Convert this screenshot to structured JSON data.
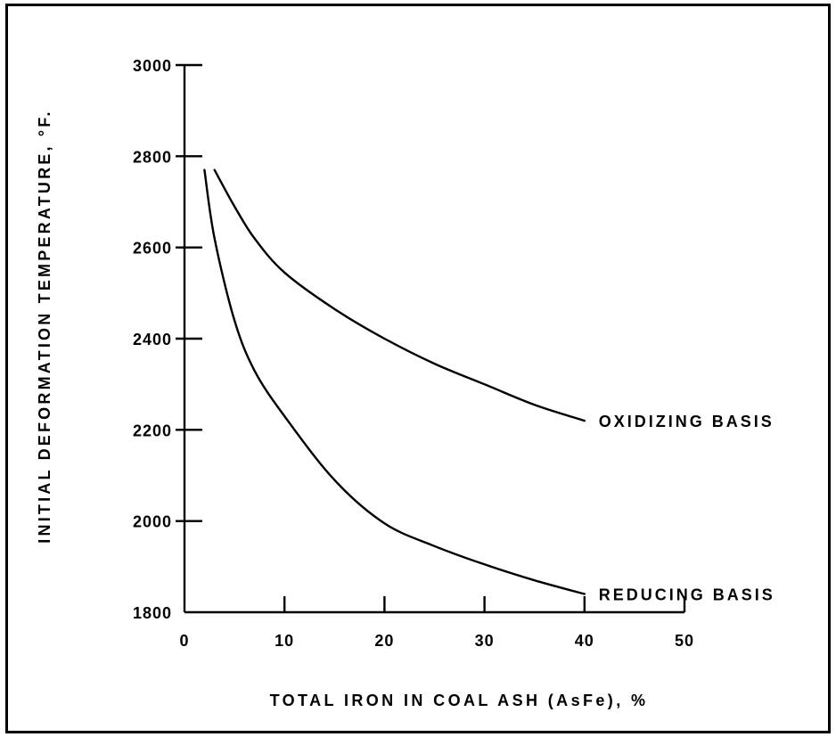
{
  "chart_data": {
    "type": "line",
    "xlabel": "TOTAL IRON IN COAL ASH (AsFe), %",
    "ylabel": "INITIAL DEFORMATION TEMPERATURE, °F.",
    "xlim": [
      0,
      50
    ],
    "ylim": [
      1800,
      3000
    ],
    "x_ticks": [
      0,
      10,
      20,
      30,
      40,
      50
    ],
    "y_ticks": [
      1800,
      2000,
      2200,
      2400,
      2600,
      2800,
      3000
    ],
    "x_tick_labels": [
      "0",
      "10",
      "20",
      "30",
      "40",
      "50"
    ],
    "y_tick_labels": [
      "1800",
      "2000",
      "2200",
      "2400",
      "2600",
      "2800",
      "3000"
    ],
    "grid": false,
    "series": [
      {
        "name": "OXIDIZING BASIS",
        "x": [
          3,
          5,
          7,
          10,
          15,
          20,
          25,
          30,
          35,
          40
        ],
        "y": [
          2770,
          2690,
          2620,
          2545,
          2465,
          2400,
          2345,
          2300,
          2255,
          2220
        ]
      },
      {
        "name": "REDUCING BASIS",
        "x": [
          2,
          3,
          5,
          7,
          10,
          15,
          20,
          25,
          30,
          35,
          40
        ],
        "y": [
          2770,
          2620,
          2440,
          2330,
          2230,
          2090,
          1995,
          1945,
          1905,
          1870,
          1840
        ]
      }
    ]
  }
}
